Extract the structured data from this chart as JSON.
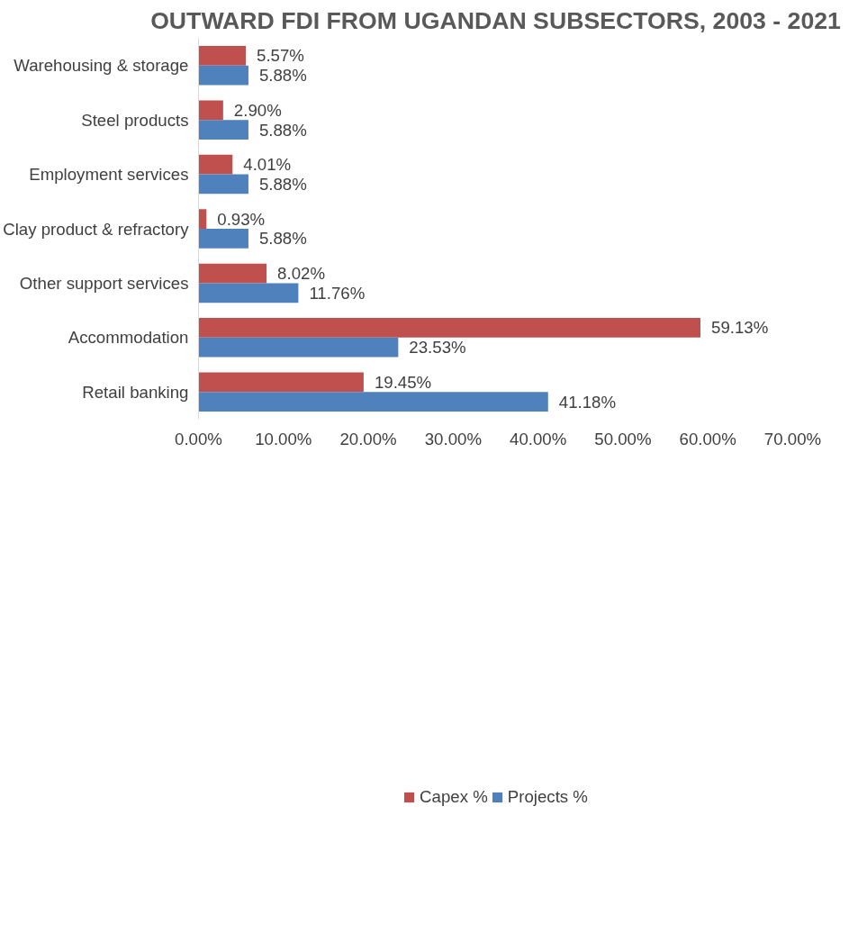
{
  "chart_data": {
    "type": "bar",
    "orientation": "horizontal",
    "title": "OUTWARD FDI FROM UGANDAN SUBSECTORS, 2003 - 2021",
    "categories": [
      "Warehousing & storage",
      "Steel products",
      "Employment services",
      "Clay product & refractory",
      "Other support services",
      "Accommodation",
      "Retail banking"
    ],
    "series": [
      {
        "name": "Capex %",
        "color": "#c0504d",
        "values": [
          5.57,
          2.9,
          4.01,
          0.93,
          8.02,
          59.13,
          19.45
        ],
        "value_labels": [
          "5.57%",
          "2.90%",
          "4.01%",
          "0.93%",
          "8.02%",
          "59.13%",
          "19.45%"
        ]
      },
      {
        "name": "Projects %",
        "color": "#4f81bd",
        "values": [
          5.88,
          5.88,
          5.88,
          5.88,
          11.76,
          23.53,
          41.18
        ],
        "value_labels": [
          "5.88%",
          "5.88%",
          "5.88%",
          "5.88%",
          "11.76%",
          "23.53%",
          "41.18%"
        ]
      }
    ],
    "xlim": [
      0,
      70
    ],
    "xticks": [
      {
        "value": 0,
        "label": "0.00%"
      },
      {
        "value": 10,
        "label": "10.00%"
      },
      {
        "value": 20,
        "label": "20.00%"
      },
      {
        "value": 30,
        "label": "30.00%"
      },
      {
        "value": 40,
        "label": "40.00%"
      },
      {
        "value": 50,
        "label": "50.00%"
      },
      {
        "value": 60,
        "label": "60.00%"
      },
      {
        "value": 70,
        "label": "70.00%"
      }
    ],
    "grid": false,
    "legend": "bottom"
  }
}
